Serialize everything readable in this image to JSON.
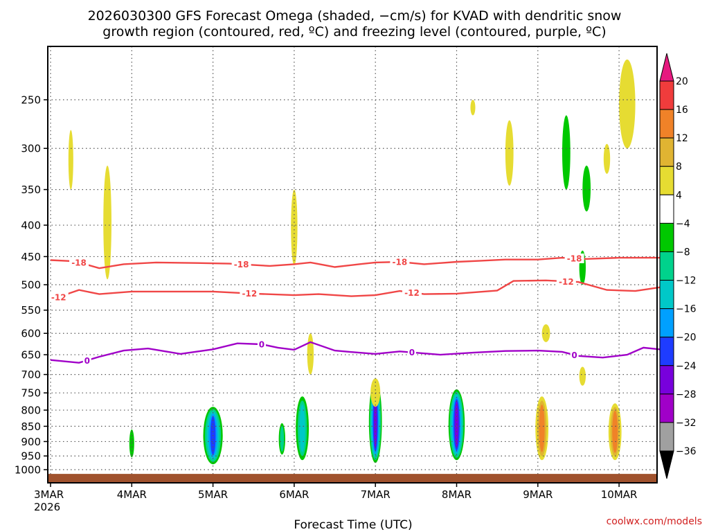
{
  "chart_data": {
    "type": "heatmap",
    "title_lines": [
      "2026030300 GFS Forecast Omega (shaded, −cm/s) for KVAD with dendritic snow",
      "growth region (contoured, red, ºC) and freezing level (contoured, purple, ºC)"
    ],
    "xlabel": "Forecast Time (UTC)",
    "ylabel": "",
    "credit": "coolwx.com/models",
    "x_ticks": [
      {
        "label": "3MAR",
        "sub": "2026",
        "day": 0
      },
      {
        "label": "4MAR",
        "sub": "",
        "day": 1
      },
      {
        "label": "5MAR",
        "sub": "",
        "day": 2
      },
      {
        "label": "6MAR",
        "sub": "",
        "day": 3
      },
      {
        "label": "7MAR",
        "sub": "",
        "day": 4
      },
      {
        "label": "8MAR",
        "sub": "",
        "day": 5
      },
      {
        "label": "9MAR",
        "sub": "",
        "day": 6
      },
      {
        "label": "10MAR",
        "sub": "",
        "day": 7
      }
    ],
    "xlim_days": [
      0,
      7.5
    ],
    "y_ticks": [
      250,
      300,
      350,
      400,
      450,
      500,
      550,
      600,
      650,
      700,
      750,
      800,
      850,
      900,
      950,
      1000
    ],
    "ylim_hpa": [
      200,
      1020
    ],
    "colorbar": {
      "labels": [
        "20",
        "16",
        "12",
        "8",
        "4",
        "−4",
        "−8",
        "−12",
        "−16",
        "−20",
        "−24",
        "−28",
        "−32",
        "−36"
      ],
      "colors": [
        "#f03c3c",
        "#f08228",
        "#e0b432",
        "#e6dc32",
        "#ffffff",
        "#00c800",
        "#00d28c",
        "#00c8c8",
        "#00a0ff",
        "#1e3cff",
        "#7800dc",
        "#a000c8",
        "#a0a0a0"
      ],
      "top_arrow_color": "#e6197f",
      "bottom_arrow_color": "#000000"
    },
    "contours": [
      {
        "name": "dgz-top-minus18",
        "color": "#f04646",
        "level_label": "-18",
        "points": [
          [
            0,
            456
          ],
          [
            0.3,
            458
          ],
          [
            0.6,
            470
          ],
          [
            0.9,
            463
          ],
          [
            1.3,
            460
          ],
          [
            1.8,
            461
          ],
          [
            2.2,
            462
          ],
          [
            2.7,
            466
          ],
          [
            3.0,
            463
          ],
          [
            3.2,
            460
          ],
          [
            3.5,
            468
          ],
          [
            3.8,
            463
          ],
          [
            4.0,
            460
          ],
          [
            4.3,
            459
          ],
          [
            4.6,
            463
          ],
          [
            5.0,
            459
          ],
          [
            5.3,
            457
          ],
          [
            5.6,
            455
          ],
          [
            6.0,
            455
          ],
          [
            6.3,
            452
          ],
          [
            6.6,
            454
          ],
          [
            7.0,
            452
          ],
          [
            7.5,
            452
          ]
        ],
        "label_days": [
          0.35,
          2.35,
          4.3,
          6.45
        ]
      },
      {
        "name": "dgz-bottom-minus12",
        "color": "#f04646",
        "level_label": "-12",
        "points": [
          [
            0,
            530
          ],
          [
            0.2,
            518
          ],
          [
            0.35,
            510
          ],
          [
            0.6,
            518
          ],
          [
            1.0,
            513
          ],
          [
            1.5,
            513
          ],
          [
            2.0,
            513
          ],
          [
            2.5,
            517
          ],
          [
            3.0,
            520
          ],
          [
            3.3,
            518
          ],
          [
            3.7,
            522
          ],
          [
            4.0,
            520
          ],
          [
            4.3,
            512
          ],
          [
            4.6,
            518
          ],
          [
            5.0,
            517
          ],
          [
            5.5,
            511
          ],
          [
            5.7,
            493
          ],
          [
            6.1,
            492
          ],
          [
            6.5,
            495
          ],
          [
            6.85,
            510
          ],
          [
            7.2,
            512
          ],
          [
            7.5,
            505
          ]
        ],
        "label_days": [
          0.1,
          2.45,
          4.45,
          6.35
        ]
      },
      {
        "name": "freezing-level-0",
        "color": "#a000c8",
        "level_label": "0",
        "points": [
          [
            0,
            663
          ],
          [
            0.35,
            670
          ],
          [
            0.6,
            655
          ],
          [
            0.9,
            640
          ],
          [
            1.2,
            635
          ],
          [
            1.6,
            648
          ],
          [
            2.0,
            637
          ],
          [
            2.3,
            623
          ],
          [
            2.6,
            625
          ],
          [
            2.8,
            633
          ],
          [
            3.0,
            638
          ],
          [
            3.2,
            620
          ],
          [
            3.5,
            640
          ],
          [
            3.8,
            645
          ],
          [
            4.0,
            648
          ],
          [
            4.3,
            642
          ],
          [
            4.8,
            650
          ],
          [
            5.2,
            645
          ],
          [
            5.6,
            641
          ],
          [
            6.0,
            640
          ],
          [
            6.3,
            643
          ],
          [
            6.5,
            653
          ],
          [
            6.8,
            657
          ],
          [
            7.1,
            650
          ],
          [
            7.3,
            633
          ],
          [
            7.5,
            637
          ]
        ],
        "label_days": [
          0.45,
          2.6,
          4.45,
          6.45
        ]
      }
    ],
    "omega_blobs": [
      {
        "day": 2.0,
        "p1": 790,
        "p2": 980,
        "hw": 0.12,
        "cls": [
          5,
          6,
          7,
          8,
          9
        ]
      },
      {
        "day": 3.1,
        "p1": 760,
        "p2": 965,
        "hw": 0.08,
        "cls": [
          5,
          6,
          7
        ]
      },
      {
        "day": 2.85,
        "p1": 840,
        "p2": 945,
        "hw": 0.04,
        "cls": [
          5,
          6
        ]
      },
      {
        "day": 4.0,
        "p1": 715,
        "p2": 975,
        "hw": 0.08,
        "cls": [
          5,
          6,
          7,
          8,
          9,
          10
        ]
      },
      {
        "day": 5.0,
        "p1": 740,
        "p2": 965,
        "hw": 0.1,
        "cls": [
          5,
          6,
          7,
          8,
          9,
          10
        ]
      },
      {
        "day": 1.0,
        "p1": 860,
        "p2": 955,
        "hw": 0.03,
        "cls": [
          5
        ]
      },
      {
        "day": 6.05,
        "p1": 760,
        "p2": 965,
        "hw": 0.08,
        "cls": [
          3,
          2,
          1
        ]
      },
      {
        "day": 6.95,
        "p1": 780,
        "p2": 965,
        "hw": 0.08,
        "cls": [
          3,
          2,
          1
        ]
      },
      {
        "day": 6.35,
        "p1": 265,
        "p2": 350,
        "hw": 0.05,
        "cls": [
          5
        ]
      },
      {
        "day": 6.6,
        "p1": 320,
        "p2": 380,
        "hw": 0.05,
        "cls": [
          5
        ]
      },
      {
        "day": 5.65,
        "p1": 270,
        "p2": 345,
        "hw": 0.05,
        "cls": [
          3
        ]
      },
      {
        "day": 7.1,
        "p1": 215,
        "p2": 300,
        "hw": 0.1,
        "cls": [
          3
        ]
      },
      {
        "day": 6.85,
        "p1": 295,
        "p2": 330,
        "hw": 0.04,
        "cls": [
          3
        ]
      },
      {
        "day": 0.7,
        "p1": 320,
        "p2": 490,
        "hw": 0.05,
        "cls": [
          3
        ]
      },
      {
        "day": 3.0,
        "p1": 350,
        "p2": 465,
        "hw": 0.04,
        "cls": [
          3
        ]
      },
      {
        "day": 4.0,
        "p1": 710,
        "p2": 790,
        "hw": 0.06,
        "cls": [
          3
        ]
      },
      {
        "day": 6.1,
        "p1": 580,
        "p2": 620,
        "hw": 0.05,
        "cls": [
          3
        ]
      },
      {
        "day": 6.55,
        "p1": 680,
        "p2": 730,
        "hw": 0.04,
        "cls": [
          3
        ]
      },
      {
        "day": 6.55,
        "p1": 440,
        "p2": 500,
        "hw": 0.04,
        "cls": [
          5
        ]
      },
      {
        "day": 0.25,
        "p1": 280,
        "p2": 350,
        "hw": 0.03,
        "cls": [
          3
        ]
      },
      {
        "day": 5.2,
        "p1": 250,
        "p2": 265,
        "hw": 0.03,
        "cls": [
          3
        ]
      },
      {
        "day": 3.2,
        "p1": 600,
        "p2": 700,
        "hw": 0.04,
        "cls": [
          3
        ]
      }
    ],
    "ground_color": "#a0522d"
  }
}
